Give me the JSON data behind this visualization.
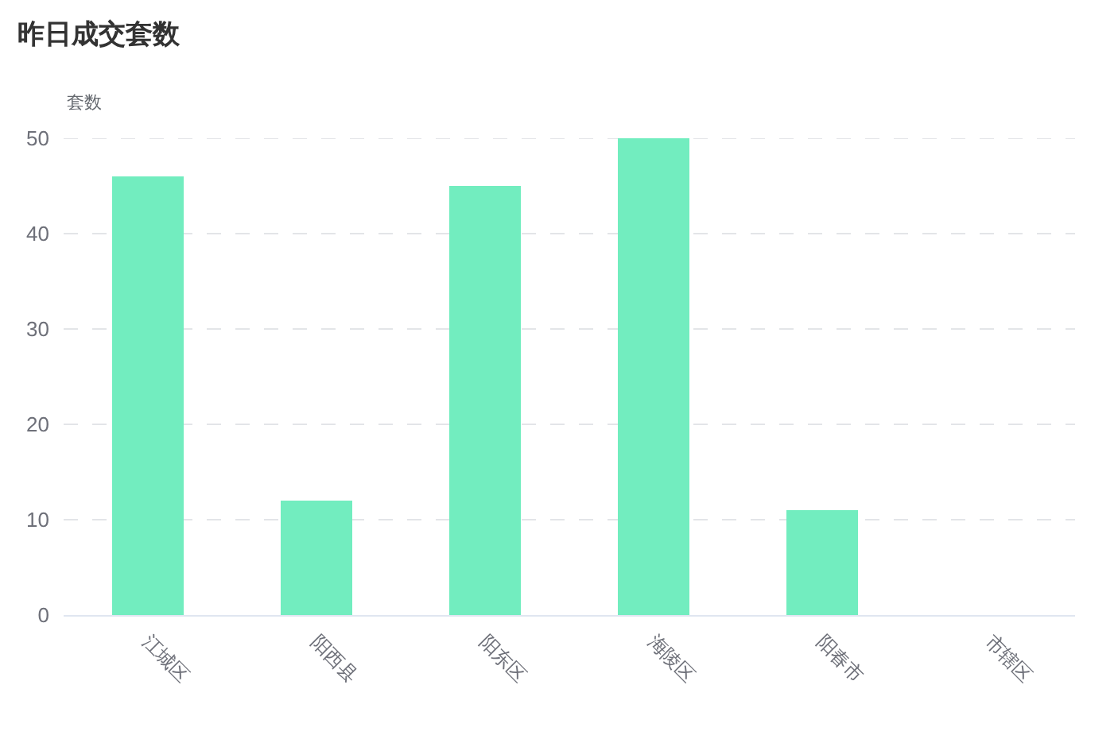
{
  "chart_data": {
    "type": "bar",
    "title": "昨日成交套数",
    "ylabel": "套数",
    "categories": [
      "江城区",
      "阳西县",
      "阳东区",
      "海陵区",
      "阳春市",
      "市辖区"
    ],
    "values": [
      46,
      12,
      45,
      50,
      11,
      0
    ],
    "color": "#72edbf",
    "ylim": [
      0,
      50
    ],
    "yticks": [
      0,
      10,
      20,
      30,
      40,
      50
    ],
    "grid": "y"
  }
}
